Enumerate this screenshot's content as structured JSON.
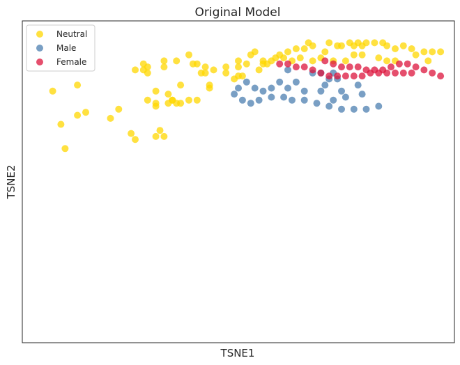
{
  "chart_data": {
    "type": "scatter",
    "title": "Original Model",
    "xlabel": "TSNE1",
    "ylabel": "TSNE2",
    "xlim": [
      0,
      100
    ],
    "ylim": [
      0,
      100
    ],
    "grid": false,
    "ticks": "none",
    "legend_placement": "top-left",
    "series": [
      {
        "name": "Neutral",
        "color": "#FFD700",
        "points": [
          [
            5,
            80
          ],
          [
            11,
            82
          ],
          [
            7,
            69
          ],
          [
            8,
            61
          ],
          [
            13,
            73
          ],
          [
            11,
            72
          ],
          [
            19,
            71
          ],
          [
            21,
            74
          ],
          [
            24,
            66
          ],
          [
            25,
            64
          ],
          [
            30,
            65
          ],
          [
            31,
            67
          ],
          [
            32,
            65
          ],
          [
            28,
            77
          ],
          [
            30,
            80
          ],
          [
            30,
            76
          ],
          [
            33,
            79
          ],
          [
            34,
            77
          ],
          [
            36,
            76
          ],
          [
            38,
            77
          ],
          [
            40,
            77
          ],
          [
            43,
            81
          ],
          [
            42,
            86
          ],
          [
            42,
            88
          ],
          [
            51,
            85
          ],
          [
            50,
            85
          ],
          [
            47,
            86
          ],
          [
            49,
            84
          ],
          [
            43,
            82
          ],
          [
            36,
            82
          ],
          [
            30,
            75
          ],
          [
            33,
            76
          ],
          [
            35,
            76
          ],
          [
            34,
            77
          ],
          [
            28,
            86
          ],
          [
            25,
            87
          ],
          [
            28,
            88
          ],
          [
            27,
            89
          ],
          [
            27,
            87
          ],
          [
            32,
            88
          ],
          [
            32,
            90
          ],
          [
            35,
            90
          ],
          [
            38,
            92
          ],
          [
            39,
            89
          ],
          [
            40,
            89
          ],
          [
            44,
            87
          ],
          [
            41,
            86
          ],
          [
            47,
            88
          ],
          [
            50,
            88
          ],
          [
            50,
            90
          ],
          [
            52,
            89
          ],
          [
            53,
            92
          ],
          [
            54,
            93
          ],
          [
            56,
            90
          ],
          [
            56,
            89
          ],
          [
            55,
            87
          ],
          [
            57,
            89
          ],
          [
            58,
            90
          ],
          [
            59,
            91
          ],
          [
            60,
            92
          ],
          [
            62,
            93
          ],
          [
            64,
            94
          ],
          [
            66,
            94
          ],
          [
            67,
            96
          ],
          [
            68,
            95
          ],
          [
            71,
            93
          ],
          [
            72,
            96
          ],
          [
            75,
            95
          ],
          [
            77,
            96
          ],
          [
            79,
            96
          ],
          [
            81,
            96
          ],
          [
            83,
            96
          ],
          [
            80,
            95
          ],
          [
            78,
            95
          ],
          [
            74,
            95
          ],
          [
            85,
            96
          ],
          [
            86,
            95
          ],
          [
            88,
            94
          ],
          [
            90,
            95
          ],
          [
            92,
            94
          ],
          [
            93,
            92
          ],
          [
            95,
            93
          ],
          [
            97,
            93
          ],
          [
            99,
            93
          ],
          [
            96,
            90
          ],
          [
            88,
            90
          ],
          [
            86,
            90
          ],
          [
            84,
            91
          ],
          [
            80,
            92
          ],
          [
            78,
            92
          ],
          [
            76,
            90
          ],
          [
            73,
            90
          ],
          [
            70,
            91
          ],
          [
            68,
            90
          ],
          [
            65,
            91
          ],
          [
            63,
            90
          ],
          [
            61,
            91
          ]
        ]
      },
      {
        "name": "Male",
        "color": "#4C7FB0",
        "points": [
          [
            62,
            87
          ],
          [
            68,
            86
          ],
          [
            70,
            86
          ],
          [
            73,
            86
          ],
          [
            72,
            84
          ],
          [
            74,
            84
          ],
          [
            71,
            82
          ],
          [
            75,
            80
          ],
          [
            79,
            82
          ],
          [
            80,
            79
          ],
          [
            76,
            78
          ],
          [
            73,
            77
          ],
          [
            70,
            80
          ],
          [
            66,
            80
          ],
          [
            64,
            83
          ],
          [
            62,
            81
          ],
          [
            60,
            83
          ],
          [
            58,
            81
          ],
          [
            56,
            80
          ],
          [
            54,
            81
          ],
          [
            52,
            83
          ],
          [
            50,
            81
          ],
          [
            49,
            79
          ],
          [
            51,
            77
          ],
          [
            53,
            76
          ],
          [
            55,
            77
          ],
          [
            58,
            78
          ],
          [
            61,
            78
          ],
          [
            63,
            77
          ],
          [
            66,
            77
          ],
          [
            69,
            76
          ],
          [
            72,
            75
          ],
          [
            75,
            74
          ],
          [
            78,
            74
          ],
          [
            81,
            74
          ],
          [
            84,
            75
          ]
        ]
      },
      {
        "name": "Female",
        "color": "#DC143C",
        "points": [
          [
            71,
            90
          ],
          [
            73,
            89
          ],
          [
            75,
            88
          ],
          [
            77,
            88
          ],
          [
            79,
            88
          ],
          [
            81,
            87
          ],
          [
            83,
            87
          ],
          [
            85,
            87
          ],
          [
            87,
            88
          ],
          [
            89,
            89
          ],
          [
            91,
            89
          ],
          [
            93,
            88
          ],
          [
            95,
            87
          ],
          [
            97,
            86
          ],
          [
            99,
            85
          ],
          [
            92,
            86
          ],
          [
            90,
            86
          ],
          [
            88,
            86
          ],
          [
            86,
            86
          ],
          [
            84,
            86
          ],
          [
            82,
            86
          ],
          [
            80,
            85
          ],
          [
            78,
            85
          ],
          [
            76,
            85
          ],
          [
            74,
            85
          ],
          [
            72,
            85
          ],
          [
            70,
            86
          ],
          [
            68,
            87
          ],
          [
            66,
            88
          ],
          [
            64,
            88
          ],
          [
            62,
            89
          ],
          [
            60,
            89
          ]
        ]
      }
    ]
  }
}
